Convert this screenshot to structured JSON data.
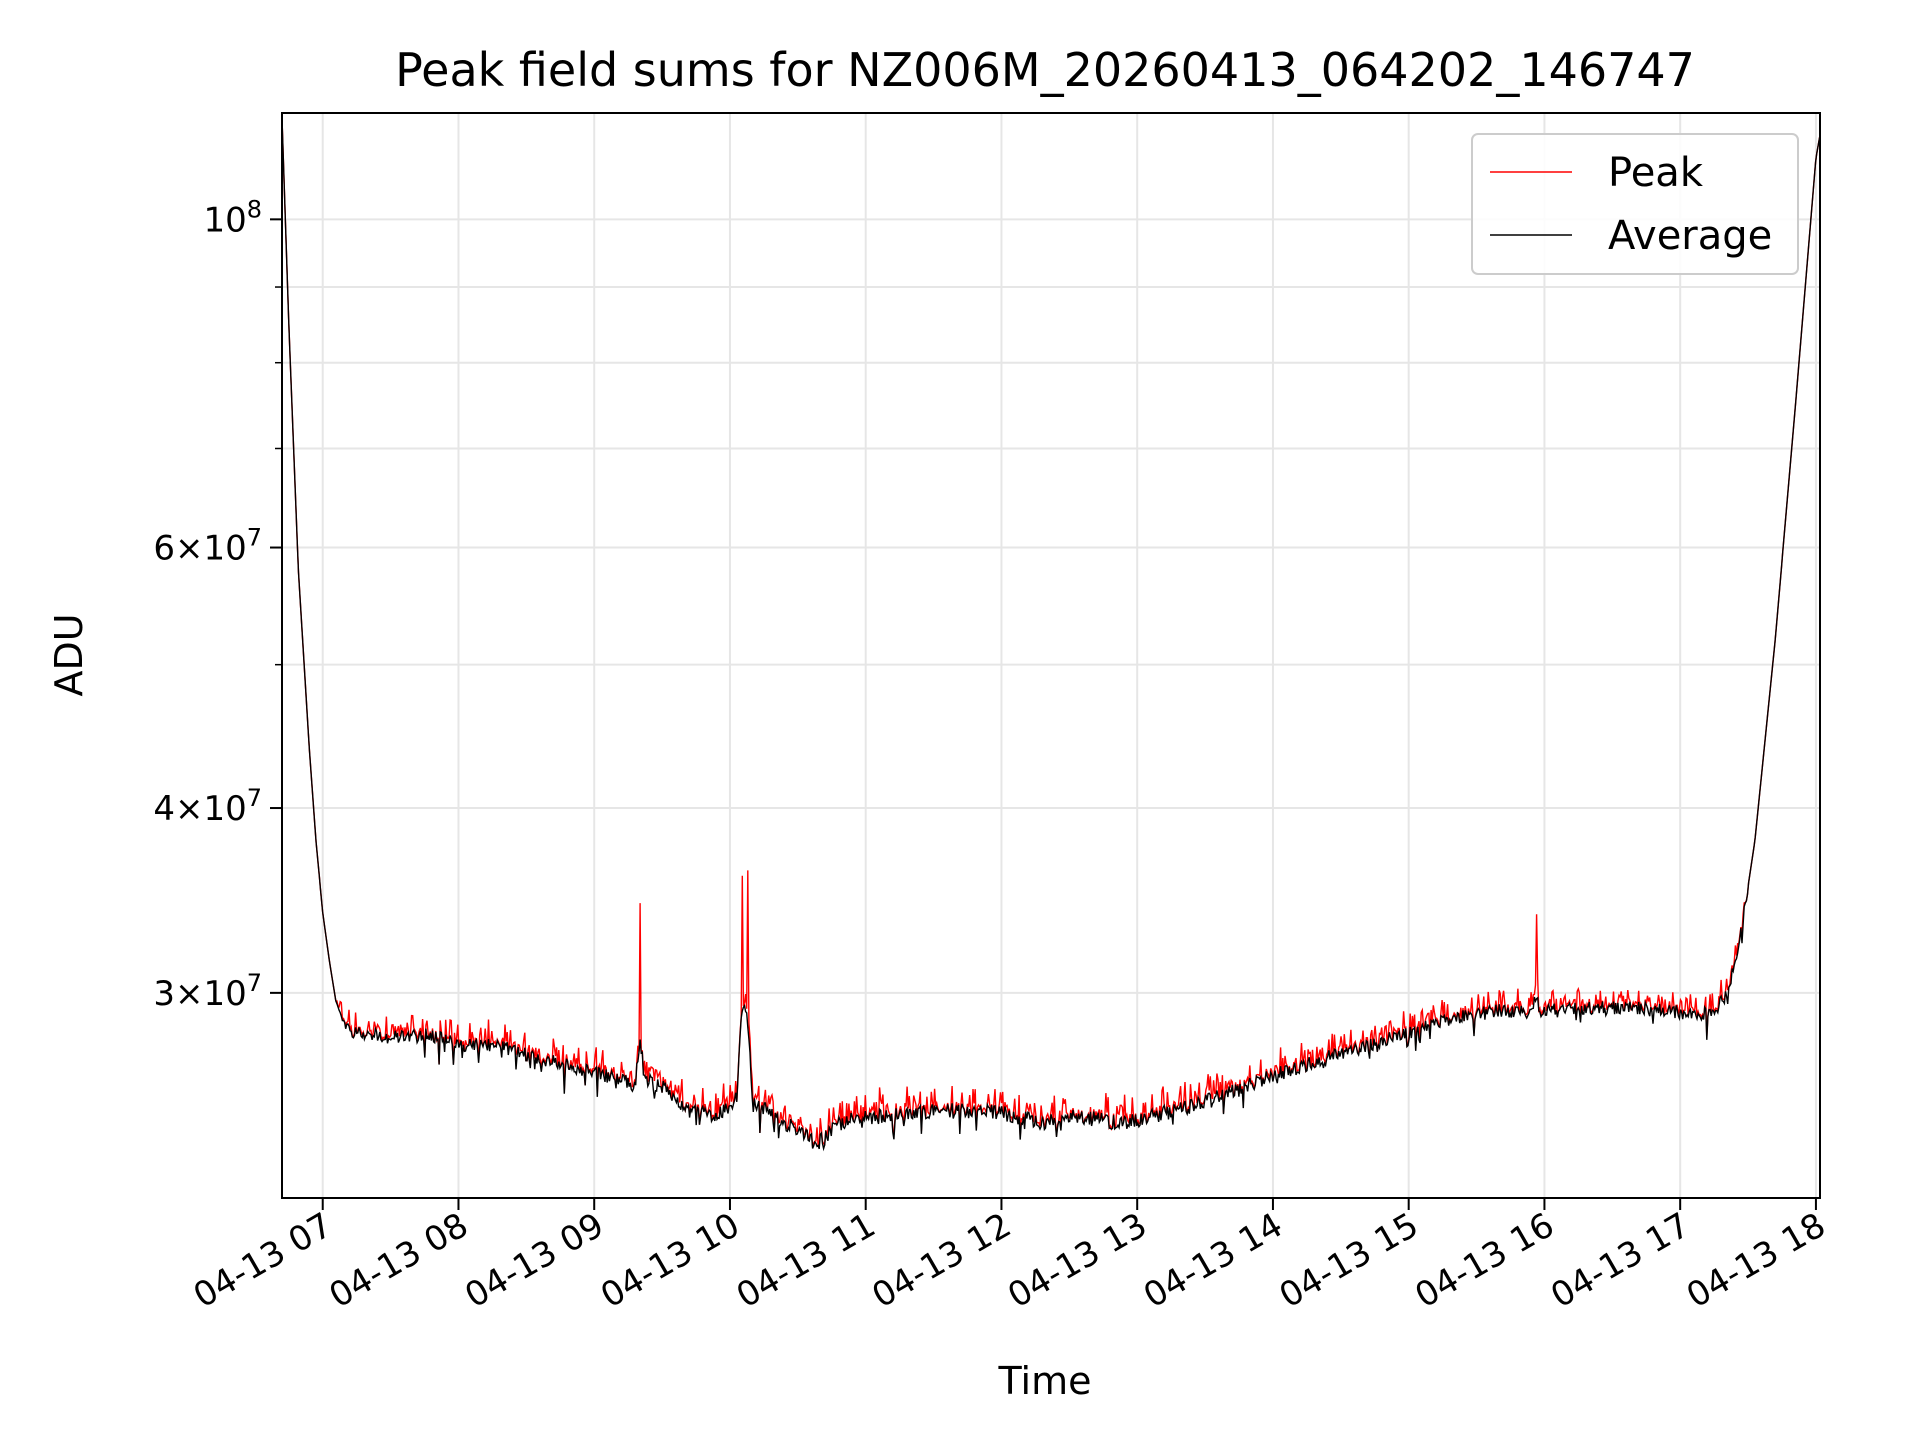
{
  "chart_data": {
    "type": "line",
    "title": "Peak field sums for NZ006M_20260413_064202_146747",
    "xlabel": "Time",
    "ylabel": "ADU",
    "yscale": "log",
    "grid": true,
    "legend_position": "top-right",
    "x_unit": "hours since 2026-04-13 00:00",
    "xlim": [
      6.7,
      18.03
    ],
    "ylim": [
      21800000,
      118000000
    ],
    "x_ticks": [
      7,
      8,
      9,
      10,
      11,
      12,
      13,
      14,
      15,
      16,
      17,
      18
    ],
    "x_tick_labels": [
      "04-13 07",
      "04-13 08",
      "04-13 09",
      "04-13 10",
      "04-13 11",
      "04-13 12",
      "04-13 13",
      "04-13 14",
      "04-13 15",
      "04-13 16",
      "04-13 17",
      "04-13 18"
    ],
    "y_ticks": [
      {
        "value": 100000000,
        "base": "10",
        "exp": "8",
        "mantissa": ""
      },
      {
        "value": 60000000,
        "base": "10",
        "exp": "7",
        "mantissa": "6"
      },
      {
        "value": 40000000,
        "base": "10",
        "exp": "7",
        "mantissa": "4"
      },
      {
        "value": 30000000,
        "base": "10",
        "exp": "7",
        "mantissa": "3"
      }
    ],
    "y_minor_ticks": [
      90000000,
      80000000,
      70000000,
      50000000
    ],
    "series": [
      {
        "name": "Peak",
        "color": "#ff0000",
        "spikes": [
          {
            "x": 9.34,
            "value": 34500000
          },
          {
            "x": 10.09,
            "value": 36000000
          },
          {
            "x": 10.13,
            "value": 36300000
          },
          {
            "x": 15.94,
            "value": 33900000
          }
        ],
        "jitter_above_average": 800000
      },
      {
        "name": "Average",
        "color": "#000000",
        "x": [
          6.7,
          6.75,
          6.82,
          6.9,
          6.95,
          7.0,
          7.05,
          7.1,
          7.15,
          7.25,
          7.5,
          7.8,
          8.0,
          8.3,
          8.6,
          9.0,
          9.3,
          9.34,
          9.37,
          9.5,
          9.7,
          9.9,
          10.05,
          10.09,
          10.11,
          10.13,
          10.17,
          10.3,
          10.5,
          10.65,
          10.8,
          11.0,
          11.5,
          12.0,
          12.3,
          12.5,
          12.9,
          13.0,
          13.5,
          14.0,
          14.5,
          15.0,
          15.3,
          15.6,
          15.9,
          15.94,
          15.97,
          16.3,
          16.8,
          17.1,
          17.25,
          17.35,
          17.45,
          17.55,
          17.7,
          17.85,
          18.0,
          18.03
        ],
        "y": [
          117000000,
          85000000,
          58000000,
          44000000,
          38000000,
          34000000,
          31500000,
          29500000,
          28500000,
          28200000,
          28000000,
          28100000,
          27700000,
          27600000,
          27100000,
          26500000,
          26000000,
          27800000,
          26300000,
          25900000,
          25000000,
          24700000,
          25500000,
          29300000,
          29200000,
          28600000,
          25200000,
          24900000,
          24200000,
          23700000,
          24500000,
          24700000,
          25000000,
          24900000,
          24500000,
          24800000,
          24500000,
          24600000,
          25300000,
          26400000,
          27300000,
          28200000,
          28800000,
          29200000,
          29100000,
          29800000,
          29200000,
          29300000,
          29300000,
          29000000,
          29100000,
          30000000,
          33000000,
          38000000,
          52000000,
          75000000,
          110000000,
          114000000
        ],
        "noise": 600000
      }
    ]
  }
}
